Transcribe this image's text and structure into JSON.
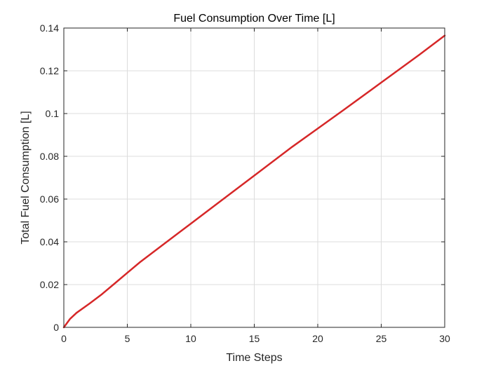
{
  "chart_data": {
    "type": "line",
    "title": "Fuel Consumption Over Time [L]",
    "xlabel": "Time Steps",
    "ylabel": "Total Fuel Consumption [L]",
    "xlim": [
      0,
      30
    ],
    "ylim": [
      0,
      0.14
    ],
    "xticks": [
      0,
      5,
      10,
      15,
      20,
      25,
      30
    ],
    "xtick_labels": [
      "0",
      "5",
      "10",
      "15",
      "20",
      "25",
      "30"
    ],
    "yticks": [
      0,
      0.02,
      0.04,
      0.06,
      0.08,
      0.1,
      0.12,
      0.14
    ],
    "ytick_labels": [
      "0",
      "0.02",
      "0.04",
      "0.06",
      "0.08",
      "0.1",
      "0.12",
      "0.14"
    ],
    "grid": true,
    "legend": "none",
    "series": [
      {
        "color": "#d62728",
        "x": [
          0,
          0.5,
          1,
          2,
          3,
          4,
          5,
          6,
          8,
          10,
          12,
          15,
          18,
          20,
          22,
          25,
          28,
          30
        ],
        "y": [
          0,
          0.004,
          0.0068,
          0.011,
          0.0155,
          0.0205,
          0.0255,
          0.0305,
          0.0395,
          0.0485,
          0.0575,
          0.071,
          0.0845,
          0.093,
          0.1015,
          0.1145,
          0.1275,
          0.1365
        ]
      }
    ]
  }
}
